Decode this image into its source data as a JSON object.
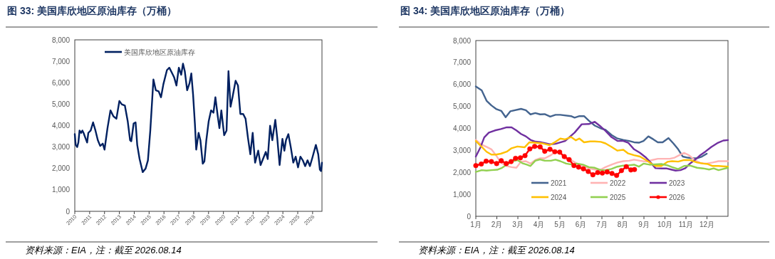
{
  "chart_data": [
    {
      "type": "line",
      "title": "图 33: 美国库欣地区原油库存（万桶）",
      "xlim": [
        2010,
        2026.63
      ],
      "xticks": [
        2010,
        2011,
        2012,
        2013,
        2014,
        2015,
        2016,
        2017,
        2018,
        2019,
        2020,
        2021,
        2022,
        2023,
        2024,
        2025,
        2026
      ],
      "ylim": [
        0,
        8000
      ],
      "yticks": [
        {
          "value": 0,
          "label": "0"
        },
        {
          "value": 1000,
          "label": "1,000"
        },
        {
          "value": 2000,
          "label": "2,000"
        },
        {
          "value": 3000,
          "label": "3,000"
        },
        {
          "value": 4000,
          "label": "4,000"
        },
        {
          "value": 5000,
          "label": "5,000"
        },
        {
          "value": 6000,
          "label": "6,000"
        },
        {
          "value": 7000,
          "label": "7,000"
        },
        {
          "value": 8000,
          "label": "8,000"
        }
      ],
      "legend": "top left",
      "annotations": [
        "资料来源：EIA，注：截至 2026.08.14"
      ],
      "series": [
        {
          "name": "美国库欣地区原油库存",
          "color": "#002060",
          "x": [
            2010.0,
            2010.06,
            2010.16,
            2010.24,
            2010.32,
            2010.43,
            2010.51,
            2010.59,
            2010.71,
            2010.83,
            2010.91,
            2011.07,
            2011.23,
            2011.39,
            2011.55,
            2011.71,
            2011.88,
            2012.0,
            2012.2,
            2012.4,
            2012.6,
            2012.8,
            2013.0,
            2013.16,
            2013.37,
            2013.56,
            2013.72,
            2013.8,
            2013.96,
            2014.09,
            2014.2,
            2014.36,
            2014.57,
            2014.76,
            2014.92,
            2015.08,
            2015.29,
            2015.45,
            2015.64,
            2015.8,
            2015.96,
            2016.2,
            2016.36,
            2016.52,
            2016.68,
            2016.84,
            2017.0,
            2017.16,
            2017.28,
            2017.4,
            2017.56,
            2017.72,
            2017.84,
            2017.96,
            2018.08,
            2018.17,
            2018.33,
            2018.45,
            2018.61,
            2018.72,
            2018.85,
            2019.01,
            2019.17,
            2019.33,
            2019.46,
            2019.62,
            2019.73,
            2019.86,
            2020.05,
            2020.21,
            2020.34,
            2020.48,
            2020.61,
            2020.82,
            2020.98,
            2021.14,
            2021.33,
            2021.49,
            2021.65,
            2021.81,
            2021.97,
            2022.13,
            2022.34,
            2022.5,
            2022.69,
            2022.85,
            2022.98,
            2023.14,
            2023.29,
            2023.49,
            2023.62,
            2023.78,
            2023.97,
            2024.1,
            2024.21,
            2024.37,
            2024.53,
            2024.7,
            2024.86,
            2025.02,
            2025.18,
            2025.34,
            2025.5,
            2025.66,
            2025.82,
            2025.98,
            2026.22,
            2026.38,
            2026.49,
            2026.57,
            2026.63
          ],
          "values": [
            3600,
            3100,
            3000,
            3210,
            3770,
            3660,
            3770,
            3660,
            3430,
            3210,
            3660,
            3770,
            4150,
            3770,
            3320,
            3050,
            3160,
            2880,
            3880,
            4710,
            4430,
            4320,
            5150,
            4990,
            4930,
            4210,
            3320,
            3270,
            4100,
            4150,
            3100,
            2440,
            1830,
            1990,
            2380,
            3770,
            6150,
            5650,
            5600,
            5320,
            5930,
            6590,
            6700,
            6480,
            6260,
            5870,
            6700,
            6370,
            6890,
            6540,
            5650,
            5980,
            6430,
            5430,
            4100,
            2880,
            3660,
            3320,
            2220,
            2330,
            3320,
            4210,
            4710,
            4600,
            5320,
            4430,
            3880,
            4710,
            3550,
            3770,
            6540,
            4880,
            5320,
            6090,
            5870,
            4540,
            4540,
            4320,
            3430,
            2660,
            3660,
            2270,
            2830,
            2160,
            2490,
            2770,
            2440,
            3990,
            3320,
            4270,
            3430,
            2160,
            3380,
            2830,
            3320,
            3600,
            3000,
            2270,
            2550,
            2050,
            2550,
            2380,
            2110,
            2380,
            2110,
            2490,
            3100,
            2660,
            1940,
            1880,
            2270
          ]
        }
      ]
    },
    {
      "type": "line",
      "title": "图 34: 美国库欣地区原油库存（万桶）",
      "xlim": [
        1,
        13
      ],
      "xticks": [
        {
          "value": 1,
          "label": "1月"
        },
        {
          "value": 2,
          "label": "2月"
        },
        {
          "value": 3,
          "label": "3月"
        },
        {
          "value": 4,
          "label": "4月"
        },
        {
          "value": 5,
          "label": "5月"
        },
        {
          "value": 6,
          "label": "6月"
        },
        {
          "value": 7,
          "label": "7月"
        },
        {
          "value": 8,
          "label": "8月"
        },
        {
          "value": 9,
          "label": "9月"
        },
        {
          "value": 10,
          "label": "10月"
        },
        {
          "value": 11,
          "label": "11月"
        },
        {
          "value": 12,
          "label": "12月"
        }
      ],
      "ylim": [
        0,
        8000
      ],
      "yticks": [
        {
          "value": 0,
          "label": "0"
        },
        {
          "value": 1000,
          "label": "1,000"
        },
        {
          "value": 2000,
          "label": "2,000"
        },
        {
          "value": 3000,
          "label": "3,000"
        },
        {
          "value": 4000,
          "label": "4,000"
        },
        {
          "value": 5000,
          "label": "5,000"
        },
        {
          "value": 6000,
          "label": "6,000"
        },
        {
          "value": 7000,
          "label": "7,000"
        },
        {
          "value": 8000,
          "label": "8,000"
        }
      ],
      "legend": "bottom",
      "annotations": [
        "资料来源：EIA，注：截至 2026.08.14"
      ],
      "series": [
        {
          "name": "2021",
          "color": "#44648f",
          "x": [
            1.0,
            1.28,
            1.51,
            1.74,
            1.96,
            2.21,
            2.42,
            2.64,
            3.15,
            3.38,
            3.6,
            3.83,
            4.06,
            4.28,
            4.54,
            4.79,
            5.02,
            5.53,
            5.7,
            5.93,
            6.15,
            6.38,
            6.66,
            6.95,
            7.17,
            7.46,
            7.74,
            8.02,
            8.3,
            8.53,
            8.76,
            8.98,
            9.21,
            9.44,
            9.66,
            9.89,
            10.17,
            10.4,
            10.63,
            10.85,
            11.08,
            11.31,
            11.53,
            11.76,
            11.99
          ],
          "values": [
            5910,
            5730,
            5260,
            5050,
            4890,
            4800,
            4510,
            4780,
            4890,
            4830,
            4640,
            4700,
            4640,
            4650,
            4540,
            4620,
            4620,
            4560,
            4490,
            4560,
            4560,
            4350,
            4130,
            4000,
            3940,
            3700,
            3540,
            3480,
            3430,
            3370,
            3350,
            3430,
            3640,
            3510,
            3370,
            3370,
            3560,
            3320,
            3050,
            2720,
            2670,
            2640,
            2640,
            2720,
            2850
          ]
        },
        {
          "name": "2022",
          "color": "#ffb3b3",
          "x": [
            1.0,
            1.28,
            1.51,
            1.74,
            1.96,
            2.19,
            2.47,
            2.7,
            2.93,
            3.15,
            3.38,
            3.6,
            3.83,
            4.06,
            4.28,
            4.57,
            4.79,
            5.02,
            5.25,
            5.53,
            5.81,
            6.1,
            6.38,
            6.66,
            6.95,
            7.17,
            7.46,
            7.74,
            8.02,
            8.3,
            8.53,
            8.81,
            9.1,
            9.38,
            9.66,
            9.95,
            10.23,
            10.46,
            10.68,
            10.91,
            11.14,
            11.42,
            11.7,
            11.99,
            12.27,
            12.55,
            13.0
          ],
          "values": [
            3480,
            3260,
            3160,
            3050,
            2780,
            2450,
            2290,
            2240,
            2210,
            2490,
            2510,
            2400,
            2560,
            2640,
            2640,
            2780,
            2940,
            2890,
            2620,
            2560,
            2400,
            2290,
            2180,
            2130,
            2130,
            2240,
            2350,
            2450,
            2510,
            2530,
            2580,
            2530,
            2490,
            2560,
            2620,
            2620,
            2620,
            2670,
            2780,
            2890,
            2780,
            2560,
            2420,
            2400,
            2450,
            2510,
            2510
          ]
        },
        {
          "name": "2023",
          "color": "#7030a0",
          "x": [
            1.0,
            1.23,
            1.4,
            1.62,
            1.91,
            2.19,
            2.47,
            2.7,
            2.93,
            3.15,
            3.38,
            3.6,
            3.83,
            4.06,
            4.51,
            4.79,
            5.25,
            5.7,
            6.04,
            6.38,
            6.66,
            6.95,
            7.17,
            7.46,
            7.74,
            8.02,
            8.25,
            8.53,
            8.81,
            9.1,
            9.32,
            9.55,
            9.83,
            10.06,
            10.29,
            10.51,
            10.74,
            10.97,
            11.19,
            11.42,
            11.65,
            11.93,
            12.21,
            12.49,
            12.78,
            13.0
          ],
          "values": [
            2720,
            3160,
            3590,
            3810,
            3910,
            3970,
            4050,
            4050,
            3910,
            3750,
            3640,
            3480,
            3400,
            3380,
            3280,
            3300,
            3430,
            3810,
            4190,
            4200,
            4300,
            4080,
            3890,
            3600,
            3430,
            3430,
            3350,
            3050,
            2890,
            2670,
            2450,
            2190,
            2180,
            2180,
            2130,
            2080,
            2100,
            2190,
            2400,
            2560,
            2760,
            2950,
            3160,
            3330,
            3450,
            3470
          ]
        },
        {
          "name": "2024",
          "color": "#ffc000",
          "x": [
            1.0,
            1.28,
            1.51,
            1.74,
            1.96,
            2.19,
            2.47,
            2.7,
            2.98,
            3.32,
            3.55,
            3.83,
            4.17,
            4.51,
            4.79,
            5.02,
            5.25,
            5.53,
            5.76,
            5.93,
            6.15,
            6.44,
            6.66,
            6.95,
            7.17,
            7.46,
            7.74,
            8.02,
            8.25,
            8.53,
            8.81,
            9.1,
            9.32,
            9.55,
            9.83,
            10.12,
            10.34,
            10.63,
            10.91,
            11.19,
            11.53,
            11.82,
            12.04,
            12.27,
            12.55,
            13.0
          ],
          "values": [
            3430,
            3160,
            2940,
            2810,
            2810,
            2850,
            2940,
            3100,
            3180,
            3140,
            3370,
            3350,
            3320,
            3240,
            3390,
            3540,
            3500,
            3610,
            3460,
            3540,
            3370,
            3410,
            3410,
            3390,
            3320,
            3160,
            2990,
            3030,
            2860,
            2780,
            2720,
            2560,
            2420,
            2290,
            2290,
            2480,
            2510,
            2490,
            2560,
            2560,
            2450,
            2400,
            2380,
            2290,
            2290,
            2260
          ]
        },
        {
          "name": "2025",
          "color": "#92d050",
          "x": [
            1.0,
            1.28,
            1.51,
            1.74,
            2.02,
            2.25,
            2.47,
            2.76,
            2.98,
            3.21,
            3.43,
            3.6,
            3.83,
            4.06,
            4.28,
            4.57,
            4.79,
            5.02,
            5.3,
            5.59,
            5.81,
            6.1,
            6.38,
            6.66,
            6.95,
            7.17,
            7.46,
            7.74,
            8.02,
            8.25,
            8.53,
            8.76,
            8.98,
            9.27,
            9.55,
            9.83,
            10.12,
            10.34,
            10.63,
            10.91,
            11.19,
            11.53,
            11.82,
            12.1,
            12.32,
            12.55,
            13.0
          ],
          "values": [
            2020,
            2100,
            2080,
            2100,
            2120,
            2210,
            2350,
            2510,
            2560,
            2420,
            2350,
            2290,
            2530,
            2590,
            2530,
            2530,
            2580,
            2510,
            2400,
            2350,
            2400,
            2350,
            2240,
            2210,
            2100,
            2100,
            2160,
            2260,
            2310,
            2320,
            2350,
            2260,
            2400,
            2350,
            2370,
            2380,
            2320,
            2240,
            2150,
            2290,
            2310,
            2210,
            2180,
            2130,
            2180,
            2100,
            2210
          ]
        },
        {
          "name": "2026",
          "color": "#ff0000",
          "marker": "circle",
          "x": [
            1.0,
            1.26,
            1.49,
            1.74,
            1.99,
            2.21,
            2.45,
            2.68,
            2.89,
            3.12,
            3.34,
            3.57,
            3.8,
            4.06,
            4.28,
            4.53,
            4.76,
            4.99,
            5.21,
            5.44,
            5.67,
            5.89,
            6.12,
            6.35,
            6.57,
            6.8,
            7.02,
            7.25,
            7.48,
            7.7,
            7.93,
            8.16,
            8.38,
            8.55
          ],
          "values": [
            2310,
            2380,
            2510,
            2490,
            2400,
            2530,
            2400,
            2490,
            2640,
            2660,
            2760,
            3070,
            3180,
            3160,
            2960,
            3050,
            2940,
            2920,
            2720,
            2580,
            2310,
            2240,
            2160,
            2040,
            1890,
            1990,
            1970,
            2020,
            1950,
            1860,
            2080,
            2260,
            2110,
            2130
          ]
        }
      ]
    }
  ]
}
